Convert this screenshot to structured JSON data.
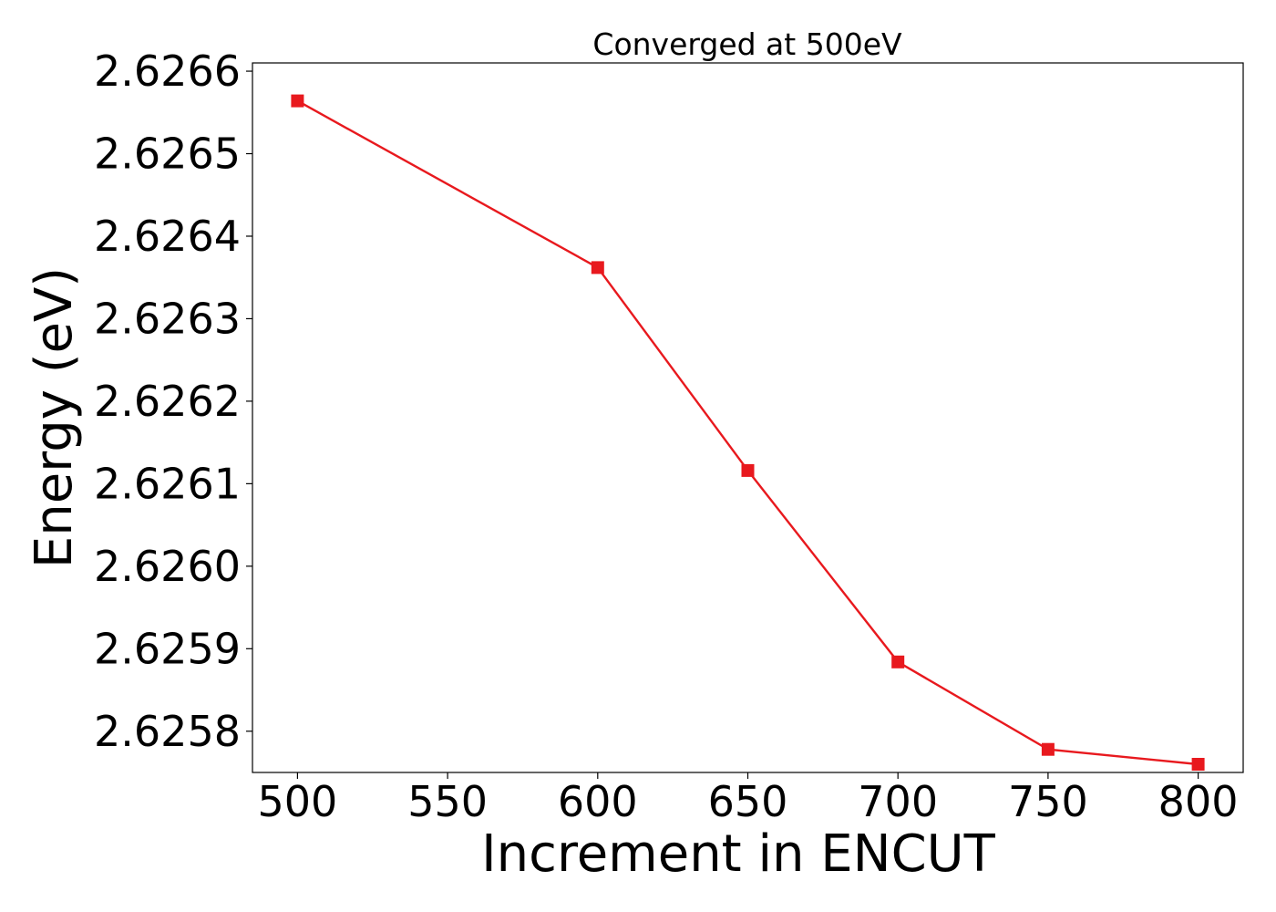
{
  "chart_data": {
    "type": "line",
    "title": "Converged at 500eV",
    "xlabel": "Increment in ENCUT",
    "ylabel": "Energy (eV)",
    "xlim": [
      485,
      815
    ],
    "ylim": [
      2.62575,
      2.62661
    ],
    "xticks": [
      500,
      550,
      600,
      650,
      700,
      750,
      800
    ],
    "xtick_labels": [
      "500",
      "550",
      "600",
      "650",
      "700",
      "750",
      "800"
    ],
    "yticks": [
      2.6258,
      2.6259,
      2.626,
      2.6261,
      2.6262,
      2.6263,
      2.6264,
      2.6265,
      2.6266
    ],
    "ytick_labels": [
      "2.6258",
      "2.6259",
      "2.6260",
      "2.6261",
      "2.6262",
      "2.6263",
      "2.6264",
      "2.6265",
      "2.6266"
    ],
    "grid": false,
    "series": [
      {
        "color": "#e8191e",
        "marker": "square",
        "x": [
          500,
          600,
          650,
          700,
          750,
          800
        ],
        "y": [
          2.626564,
          2.626362,
          2.626116,
          2.625884,
          2.625778,
          2.62576
        ]
      }
    ]
  }
}
